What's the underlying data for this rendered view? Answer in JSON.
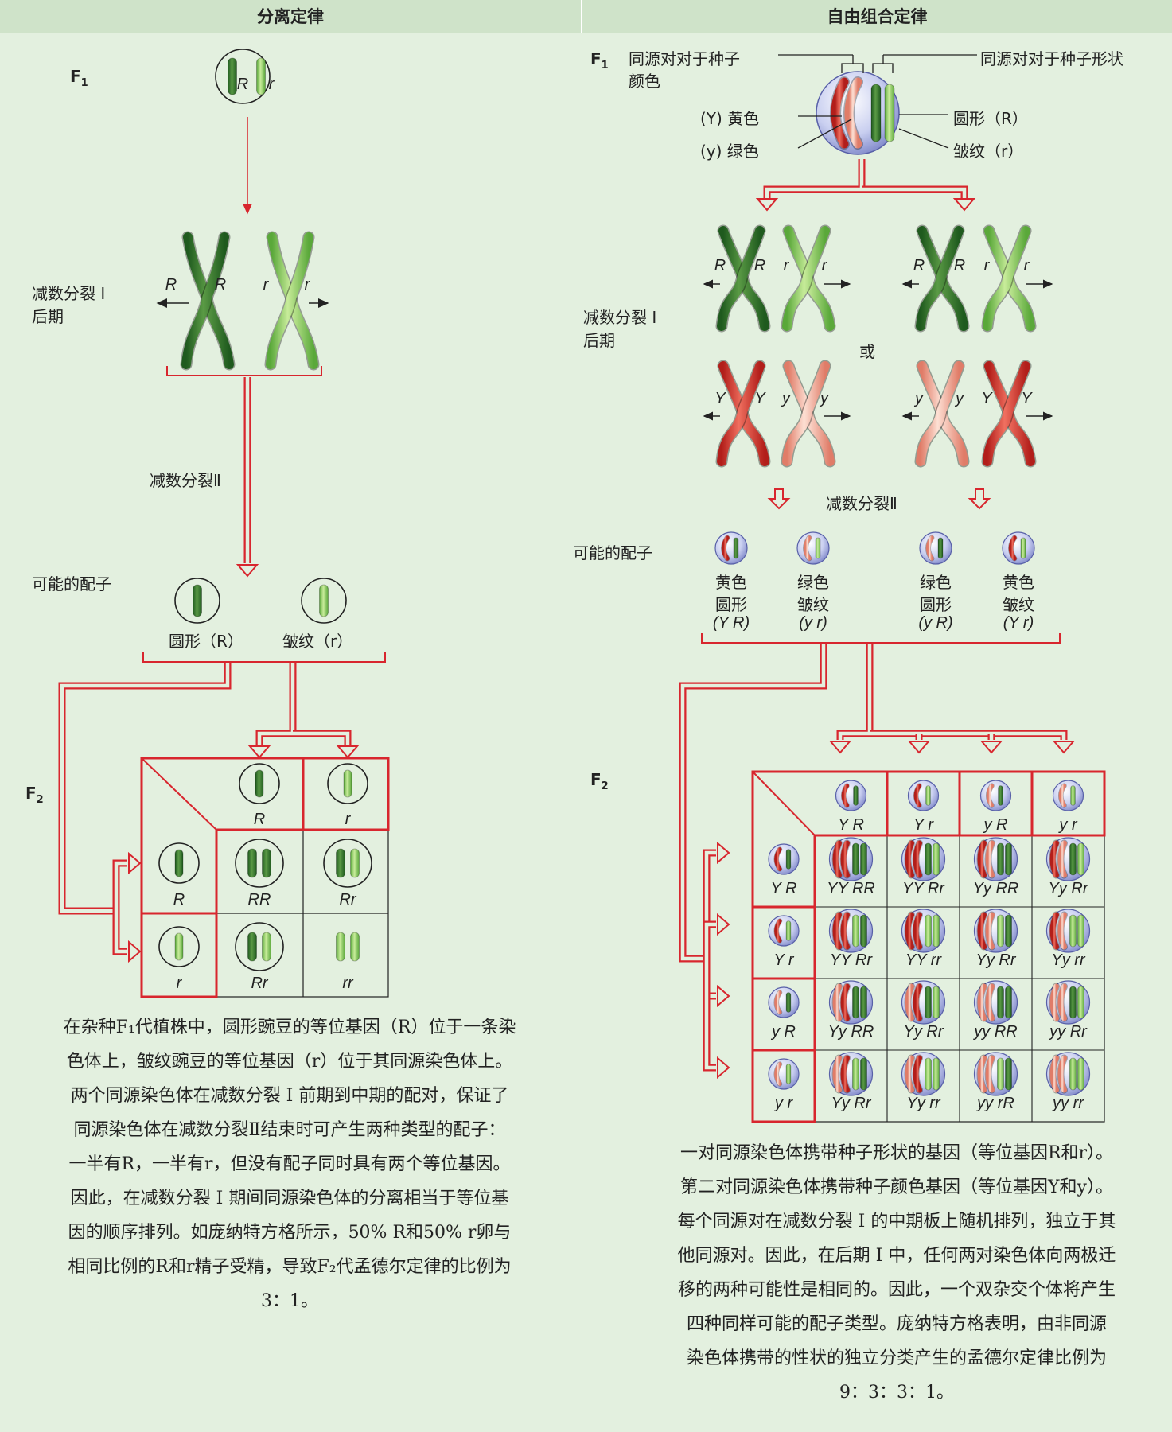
{
  "left": {
    "header": "分离定律",
    "f1_label": "F",
    "f1_sub": "1",
    "f1_alleles": [
      "R",
      "r"
    ],
    "meiosis1_label_1": "减数分裂 I",
    "meiosis1_label_2": "后期",
    "meiosis1_alleles": [
      "R",
      "R",
      "r",
      "r"
    ],
    "meiosis2_label": "减数分裂Ⅱ",
    "gametes_label": "可能的配子",
    "gamete_round": "圆形（R）",
    "gamete_wrinkled": "皱纹（r）",
    "f2_label": "F",
    "f2_sub": "2",
    "punnett": {
      "top": [
        "R",
        "r"
      ],
      "side": [
        "R",
        "r"
      ],
      "cells": [
        [
          "RR",
          "Rr"
        ],
        [
          "Rr",
          "rr"
        ]
      ]
    },
    "paragraph": [
      "在杂种F₁代植株中，圆形豌豆的等位基因（R）位于一条染",
      "色体上，皱纹豌豆的等位基因（r）位于其同源染色体上。",
      "两个同源染色体在减数分裂 I 前期到中期的配对，保证了",
      "同源染色体在减数分裂Ⅱ结束时可产生两种类型的配子：",
      "一半有R，一半有r，但没有配子同时具有两个等位基因。",
      "因此，在减数分裂 I 期间同源染色体的分离相当于等位基",
      "因的顺序排列。如庞纳特方格所示，50% R和50% r卵与",
      "相同比例的R和r精子受精，导致F₂代孟德尔定律的比例为",
      "3：1。"
    ]
  },
  "right": {
    "header": "自由组合定律",
    "f1_label": "F",
    "f1_sub": "1",
    "homolog_color_1": "同源对对于种子",
    "homolog_color_2": "颜色",
    "homolog_shape": "同源对对于种子形状",
    "yellow": "(Y) 黄色",
    "green": "(y) 绿色",
    "round": "圆形（R）",
    "wrinkled": "皱纹（r）",
    "meiosis1_label_1": "减数分裂 I",
    "meiosis1_label_2": "后期",
    "or_label": "或",
    "meiosis2_label": "减数分裂Ⅱ",
    "gametes_label": "可能的配子",
    "gametes": [
      {
        "l1": "黄色",
        "l2": "圆形",
        "l3": "(Y R)"
      },
      {
        "l1": "绿色",
        "l2": "皱纹",
        "l3": "(y r)"
      },
      {
        "l1": "绿色",
        "l2": "圆形",
        "l3": "(y R)"
      },
      {
        "l1": "黄色",
        "l2": "皱纹",
        "l3": "(Y r)"
      }
    ],
    "f2_label": "F",
    "f2_sub": "2",
    "punnett": {
      "top": [
        "Y R",
        "Y r",
        "y R",
        "y r"
      ],
      "side": [
        "Y R",
        "Y r",
        "y R",
        "y r"
      ],
      "cells": [
        [
          "YY RR",
          "YY Rr",
          "Yy RR",
          "Yy Rr"
        ],
        [
          "YY Rr",
          "YY rr",
          "Yy Rr",
          "Yy rr"
        ],
        [
          "Yy RR",
          "Yy Rr",
          "yy RR",
          "yy Rr"
        ],
        [
          "Yy Rr",
          "Yy rr",
          "yy rR",
          "yy rr"
        ]
      ]
    },
    "paragraph": [
      "一对同源染色体携带种子形状的基因（等位基因R和r）。",
      "第二对同源染色体携带种子颜色基因（等位基因Y和y）。",
      "每个同源对在减数分裂 I 的中期板上随机排列，独立于其",
      "他同源对。因此，在后期 I 中，任何两对染色体向两极迁",
      "移的两种可能性是相同的。因此，一个双杂交个体将产生",
      "四种同样可能的配子类型。庞纳特方格表明，由非同源",
      "染色体携带的性状的独立分类产生的孟德尔定律比例为",
      "9：3：3：1。"
    ]
  },
  "colors": {
    "arrow": "#d8262e",
    "dark_green": "#2f6e2a",
    "light_green": "#8cc860",
    "red": "#d8322c",
    "pink": "#f2a392",
    "background": "#e3f0df"
  }
}
